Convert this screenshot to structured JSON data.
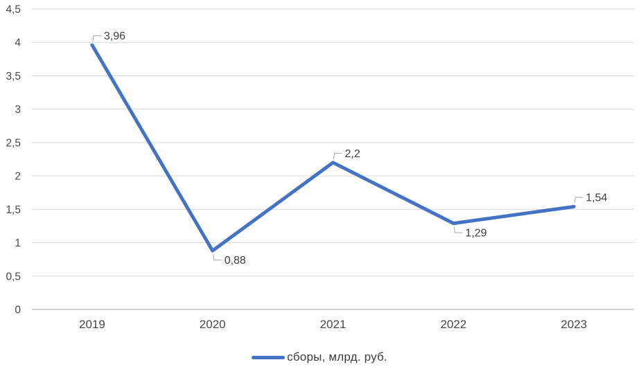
{
  "chart_data": {
    "type": "line",
    "title": "",
    "xlabel": "",
    "ylabel": "",
    "categories": [
      "2019",
      "2020",
      "2021",
      "2022",
      "2023"
    ],
    "series": [
      {
        "name": "сборы, млрд. руб.",
        "values": [
          3.96,
          0.88,
          2.2,
          1.29,
          1.54
        ],
        "labels": [
          "3,96",
          "0,88",
          "2,2",
          "1,29",
          "1,54"
        ],
        "label_positions": [
          "above",
          "below",
          "above",
          "below",
          "above"
        ],
        "color": "#4472C4"
      }
    ],
    "ylim": [
      0,
      4.5
    ],
    "y_tick_step": 0.5,
    "y_ticks": [
      {
        "value": 4.5,
        "label": "4,5"
      },
      {
        "value": 4,
        "label": "4"
      },
      {
        "value": 3.5,
        "label": "3,5"
      },
      {
        "value": 3,
        "label": "3"
      },
      {
        "value": 2.5,
        "label": "2,5"
      },
      {
        "value": 2,
        "label": "2"
      },
      {
        "value": 1.5,
        "label": "1,5"
      },
      {
        "value": 1,
        "label": "1"
      },
      {
        "value": 0.5,
        "label": "0,5"
      },
      {
        "value": 0,
        "label": "0"
      }
    ],
    "grid": true,
    "legend_position": "bottom",
    "decimal_separator": ",",
    "colors": {
      "series": "#4472C4",
      "gridline": "#D9D9D9",
      "axis": "#BFBFBF",
      "tick_text": "#474747",
      "data_label_text": "#3d3d3d",
      "leader": "#A6A6A6",
      "background": "#FFFFFF"
    }
  }
}
